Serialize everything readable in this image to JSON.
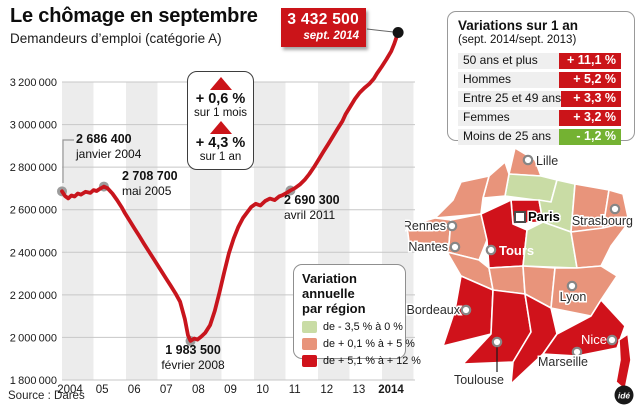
{
  "colors": {
    "accent_red": "#cb1419",
    "green_badge": "#74b232",
    "chart_line": "#c8151d",
    "map_light_green": "#c9dca5",
    "map_salmon": "#e8947b",
    "map_red": "#d0121b",
    "band_gray": "#ececec",
    "dot_gray": "#9c9c9c"
  },
  "header": {
    "title": "Le chômage en septembre",
    "subtitle": "Demandeurs d’emploi (catégorie A)"
  },
  "badge": {
    "value": "3 432 500",
    "date": "sept. 2014"
  },
  "variations_panel": {
    "title": "Variations sur 1 an",
    "subtitle": "(sept. 2014/sept. 2013)",
    "rows": [
      {
        "label": "50 ans et plus",
        "value": "+ 11,1 %",
        "badge_color": "#cb1419"
      },
      {
        "label": "Hommes",
        "value": "+ 5,2 %",
        "badge_color": "#cb1419"
      },
      {
        "label": "Entre 25 et 49 ans",
        "value": "+ 3,3 %",
        "badge_color": "#cb1419"
      },
      {
        "label": "Femmes",
        "value": "+ 3,2 %",
        "badge_color": "#cb1419"
      },
      {
        "label": "Moins de 25 ans",
        "value": "- 1,2 %",
        "badge_color": "#74b232"
      }
    ]
  },
  "callout": {
    "month": {
      "value": "+ 0,6 %",
      "label": "sur 1 mois"
    },
    "year": {
      "value": "+ 4,3 %",
      "label": "sur 1 an"
    }
  },
  "annotations": [
    {
      "value": "2 686 400",
      "date": "janvier 2004"
    },
    {
      "value": "2 708 700",
      "date": "mai 2005"
    },
    {
      "value": "2 690 300",
      "date": "avril 2011"
    },
    {
      "value": "1 983 500",
      "date": "février 2008"
    }
  ],
  "chart_data": {
    "type": "line",
    "title": "Demandeurs d’emploi (catégorie A)",
    "xlabel": "",
    "ylabel": "",
    "ylim": [
      1800000,
      3450000
    ],
    "y_ticks": [
      3200000,
      3000000,
      2800000,
      2600000,
      2400000,
      2200000,
      2000000,
      1800000
    ],
    "x_ticks": [
      "2004",
      "05",
      "06",
      "07",
      "08",
      "09",
      "10",
      "11",
      "12",
      "13",
      "2014"
    ],
    "grid": "horizontal-only",
    "background_bands": "alternating light-gray vertical bands on even years",
    "series": [
      {
        "name": "Demandeurs d’emploi catégorie A",
        "points": [
          [
            2004.0,
            2686400
          ],
          [
            2004.1,
            2664000
          ],
          [
            2004.2,
            2653000
          ],
          [
            2004.3,
            2667000
          ],
          [
            2004.4,
            2662000
          ],
          [
            2004.5,
            2676000
          ],
          [
            2004.6,
            2671000
          ],
          [
            2004.75,
            2684000
          ],
          [
            2004.9,
            2679000
          ],
          [
            2005.0,
            2692000
          ],
          [
            2005.1,
            2688000
          ],
          [
            2005.2,
            2698000
          ],
          [
            2005.33,
            2708700
          ],
          [
            2005.45,
            2700000
          ],
          [
            2005.6,
            2676000
          ],
          [
            2005.75,
            2645000
          ],
          [
            2005.9,
            2610000
          ],
          [
            2006.0,
            2583000
          ],
          [
            2006.15,
            2548000
          ],
          [
            2006.3,
            2512000
          ],
          [
            2006.45,
            2477000
          ],
          [
            2006.6,
            2441000
          ],
          [
            2006.75,
            2406000
          ],
          [
            2006.9,
            2371000
          ],
          [
            2007.0,
            2348000
          ],
          [
            2007.15,
            2313000
          ],
          [
            2007.3,
            2278000
          ],
          [
            2007.45,
            2243000
          ],
          [
            2007.6,
            2208000
          ],
          [
            2007.75,
            2168000
          ],
          [
            2007.9,
            2085000
          ],
          [
            2008.0,
            2010000
          ],
          [
            2008.08,
            1983500
          ],
          [
            2008.2,
            1995000
          ],
          [
            2008.3,
            1990000
          ],
          [
            2008.42,
            2004000
          ],
          [
            2008.55,
            2022000
          ],
          [
            2008.7,
            2058000
          ],
          [
            2008.85,
            2125000
          ],
          [
            2009.0,
            2212000
          ],
          [
            2009.15,
            2306000
          ],
          [
            2009.3,
            2395000
          ],
          [
            2009.45,
            2465000
          ],
          [
            2009.6,
            2520000
          ],
          [
            2009.75,
            2562000
          ],
          [
            2009.9,
            2592000
          ],
          [
            2010.0,
            2612000
          ],
          [
            2010.15,
            2628000
          ],
          [
            2010.3,
            2620000
          ],
          [
            2010.45,
            2641000
          ],
          [
            2010.6,
            2652000
          ],
          [
            2010.75,
            2645000
          ],
          [
            2010.9,
            2663000
          ],
          [
            2011.0,
            2668000
          ],
          [
            2011.12,
            2678000
          ],
          [
            2011.25,
            2690300
          ],
          [
            2011.4,
            2702000
          ],
          [
            2011.55,
            2718000
          ],
          [
            2011.7,
            2740000
          ],
          [
            2011.85,
            2768000
          ],
          [
            2012.0,
            2800000
          ],
          [
            2012.15,
            2836000
          ],
          [
            2012.3,
            2872000
          ],
          [
            2012.45,
            2908000
          ],
          [
            2012.6,
            2944000
          ],
          [
            2012.75,
            2980000
          ],
          [
            2012.9,
            3016000
          ],
          [
            2013.0,
            3048000
          ],
          [
            2013.15,
            3084000
          ],
          [
            2013.3,
            3120000
          ],
          [
            2013.45,
            3150000
          ],
          [
            2013.6,
            3172000
          ],
          [
            2013.75,
            3190000
          ],
          [
            2013.9,
            3216000
          ],
          [
            2014.0,
            3240000
          ],
          [
            2014.15,
            3272000
          ],
          [
            2014.3,
            3306000
          ],
          [
            2014.45,
            3344000
          ],
          [
            2014.55,
            3380000
          ],
          [
            2014.67,
            3432500
          ]
        ]
      }
    ],
    "markers": [
      {
        "x": 2004.0,
        "y": 2686400,
        "label": "2 686 400 janvier 2004",
        "color": "#9c9c9c"
      },
      {
        "x": 2005.33,
        "y": 2708700,
        "label": "2 708 700 mai 2005",
        "color": "#9c9c9c"
      },
      {
        "x": 2008.08,
        "y": 1983500,
        "label": "1 983 500 février 2008",
        "color": "#9c9c9c"
      },
      {
        "x": 2011.25,
        "y": 2690300,
        "label": "2 690 300 avril 2011",
        "color": "#9c9c9c"
      },
      {
        "x": 2014.67,
        "y": 3432500,
        "label": "3 432 500 sept. 2014",
        "color": "#141414"
      }
    ]
  },
  "map": {
    "legend": {
      "title_line1": "Variation annuelle",
      "title_line2": "par région",
      "items": [
        {
          "label": "de - 3,5 % à 0 %",
          "color": "#c9dca5"
        },
        {
          "label": "de + 0,1 % à + 5 %",
          "color": "#e8947b"
        },
        {
          "label": "de + 5,1 % à + 12 %",
          "color": "#d0121b"
        }
      ]
    },
    "cities": [
      {
        "name": "Lille"
      },
      {
        "name": "Paris"
      },
      {
        "name": "Strasbourg"
      },
      {
        "name": "Rennes"
      },
      {
        "name": "Nantes"
      },
      {
        "name": "Tours"
      },
      {
        "name": "Lyon"
      },
      {
        "name": "Bordeaux"
      },
      {
        "name": "Toulouse"
      },
      {
        "name": "Marseille"
      },
      {
        "name": "Nice"
      }
    ]
  },
  "footer": {
    "source": "Source : Dares",
    "logo": "idé"
  }
}
